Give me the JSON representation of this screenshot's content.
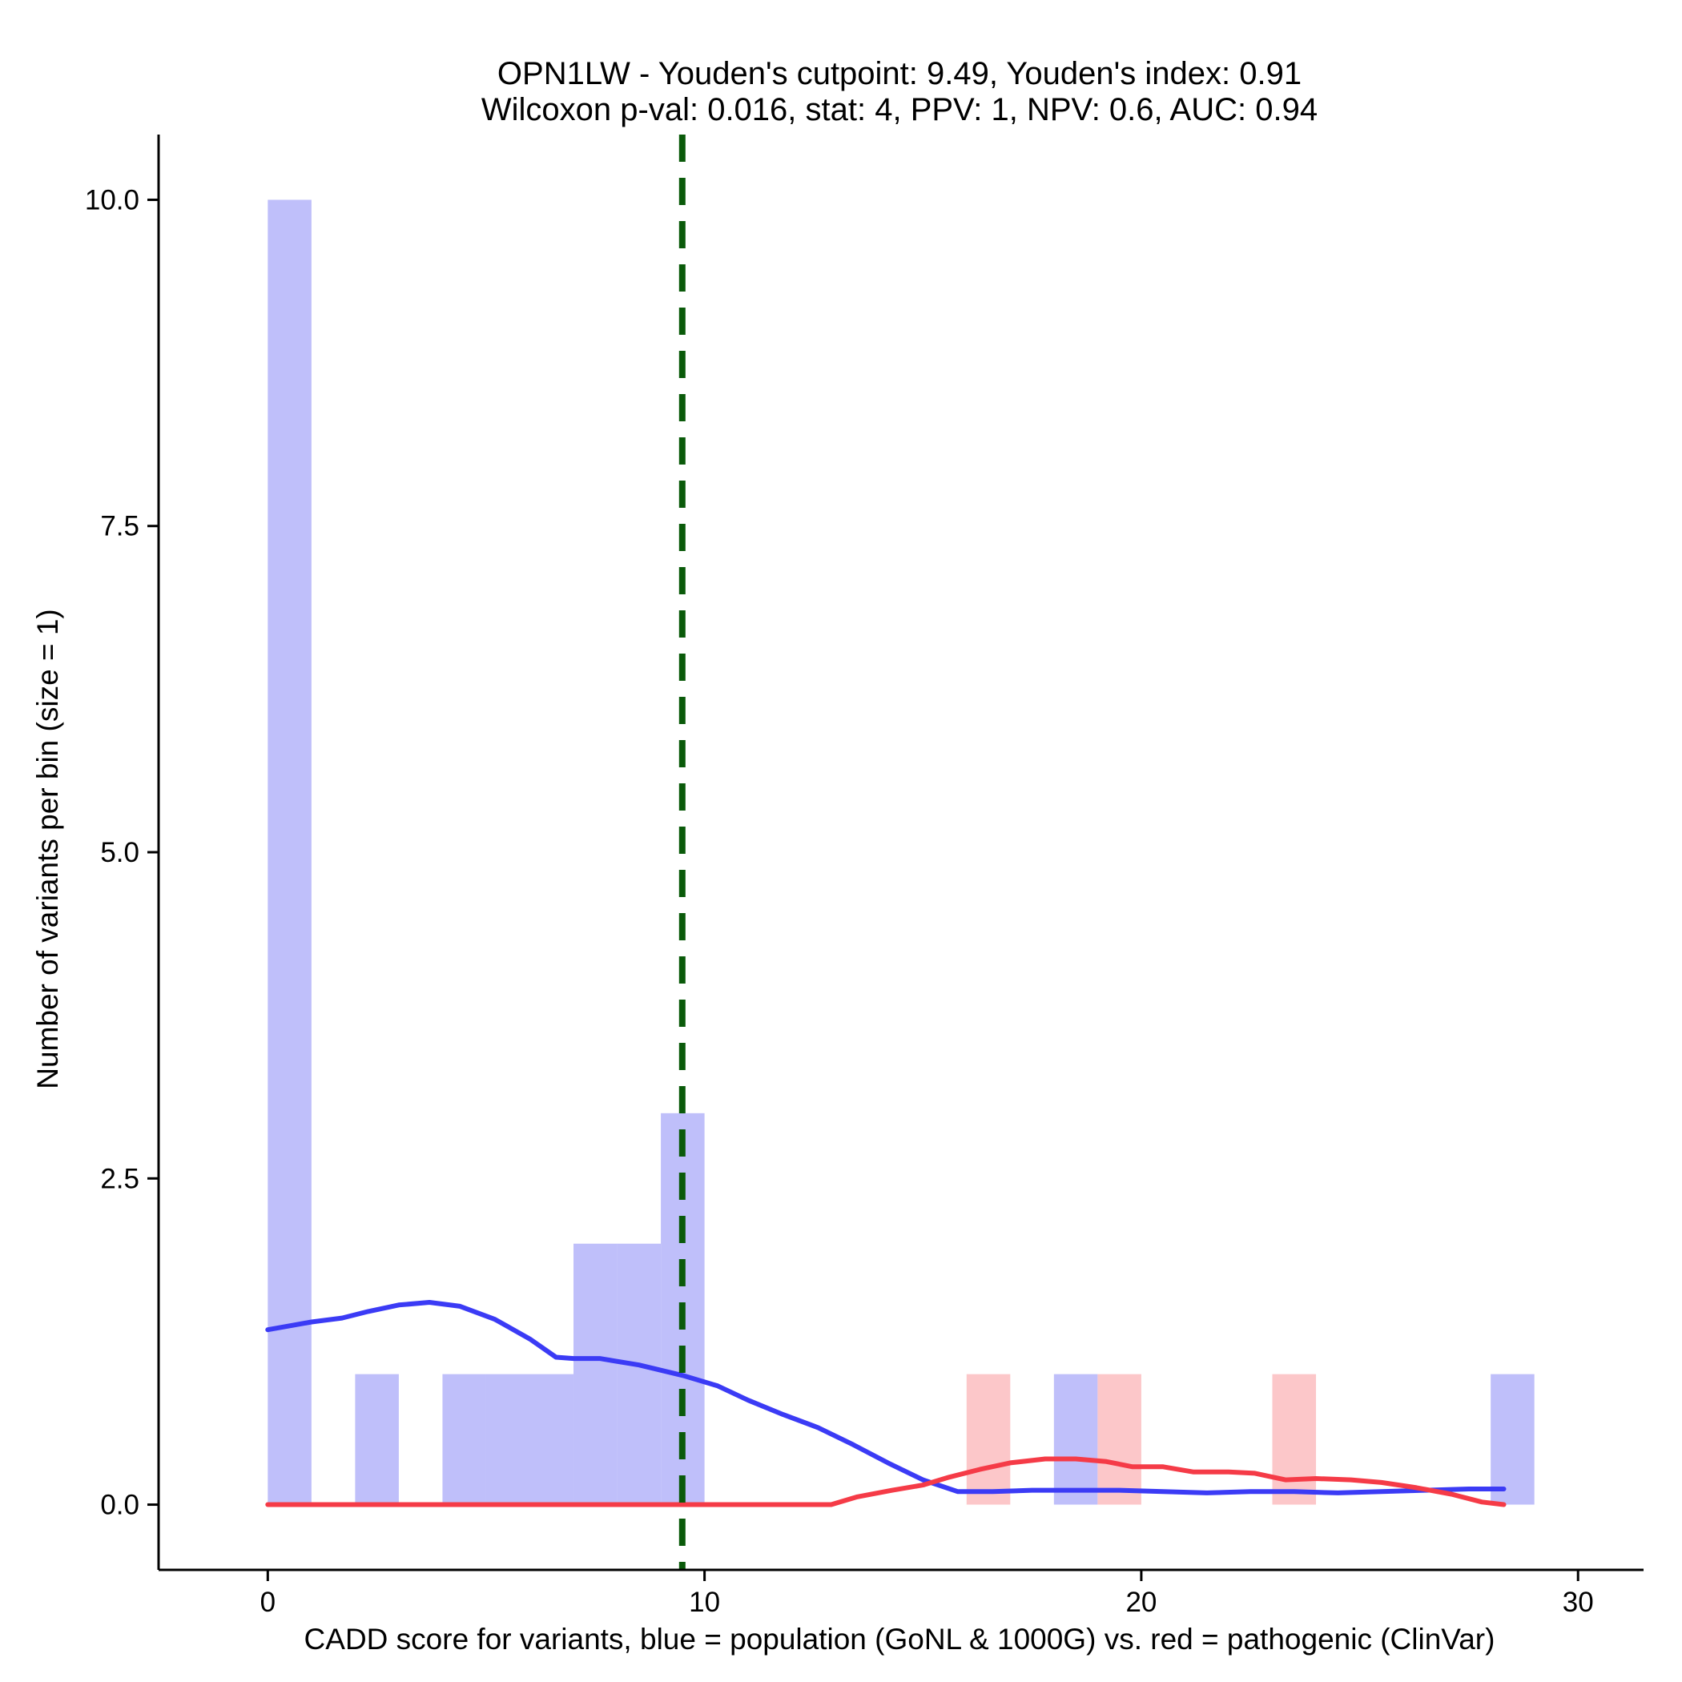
{
  "chart_data": {
    "type": "histogram",
    "title_line1": "OPN1LW - Youden's cutpoint: 9.49, Youden's index: 0.91",
    "title_line2": "Wilcoxon p-val: 0.016, stat: 4, PPV: 1, NPV: 0.6, AUC: 0.94",
    "xlabel": "CADD score for variants, blue = population (GoNL & 1000G) vs. red = pathogenic (ClinVar)",
    "ylabel": "Number of variants per bin (size = 1)",
    "xlim": [
      -2.5,
      31.5
    ],
    "ylim": [
      -0.5,
      10.5
    ],
    "x_ticks": [
      0,
      10,
      20,
      30
    ],
    "x_tick_labels": [
      "0",
      "10",
      "20",
      "30"
    ],
    "y_ticks": [
      0,
      2.5,
      5,
      7.5,
      10
    ],
    "y_tick_labels": [
      "0.0",
      "2.5",
      "5.0",
      "7.5",
      "10.0"
    ],
    "bin_width": 1,
    "cutpoint": 9.49,
    "colors": {
      "population_bars": "#bfbffa",
      "pathogenic_bars": "#fcc4c6",
      "population_density": "#3b3bf5",
      "pathogenic_density": "#f53b47",
      "cutpoint_line": "#0a5a0a",
      "axis": "#000000"
    },
    "series": [
      {
        "name": "population (GoNL & 1000G)",
        "bins": [
          {
            "x0": 0,
            "x1": 1,
            "count": 10
          },
          {
            "x0": 2,
            "x1": 3,
            "count": 1
          },
          {
            "x0": 4,
            "x1": 5,
            "count": 1
          },
          {
            "x0": 5,
            "x1": 6,
            "count": 1
          },
          {
            "x0": 6,
            "x1": 7,
            "count": 1
          },
          {
            "x0": 7,
            "x1": 8,
            "count": 2
          },
          {
            "x0": 8,
            "x1": 9,
            "count": 2
          },
          {
            "x0": 9,
            "x1": 10,
            "count": 3
          },
          {
            "x0": 18,
            "x1": 19,
            "count": 1
          },
          {
            "x0": 28,
            "x1": 29,
            "count": 1
          }
        ],
        "density_curve": [
          [
            0,
            1.34
          ],
          [
            1,
            1.4
          ],
          [
            1.7,
            1.43
          ],
          [
            2.3,
            1.48
          ],
          [
            3,
            1.53
          ],
          [
            3.7,
            1.55
          ],
          [
            4.4,
            1.52
          ],
          [
            5.2,
            1.42
          ],
          [
            6,
            1.27
          ],
          [
            6.6,
            1.13
          ],
          [
            7,
            1.12
          ],
          [
            7.6,
            1.12
          ],
          [
            8.5,
            1.07
          ],
          [
            9.5,
            0.99
          ],
          [
            10.3,
            0.91
          ],
          [
            11,
            0.8
          ],
          [
            11.8,
            0.69
          ],
          [
            12.6,
            0.59
          ],
          [
            13.4,
            0.46
          ],
          [
            14.2,
            0.32
          ],
          [
            15,
            0.19
          ],
          [
            15.8,
            0.1
          ],
          [
            16.6,
            0.1
          ],
          [
            17.5,
            0.11
          ],
          [
            18.5,
            0.11
          ],
          [
            19.5,
            0.11
          ],
          [
            20.5,
            0.1
          ],
          [
            21.5,
            0.09
          ],
          [
            22.5,
            0.1
          ],
          [
            23.5,
            0.1
          ],
          [
            24.5,
            0.09
          ],
          [
            25.5,
            0.1
          ],
          [
            26.5,
            0.11
          ],
          [
            27.5,
            0.12
          ],
          [
            28.3,
            0.12
          ]
        ]
      },
      {
        "name": "pathogenic (ClinVar)",
        "bins": [
          {
            "x0": 16,
            "x1": 17,
            "count": 1
          },
          {
            "x0": 19,
            "x1": 20,
            "count": 1
          },
          {
            "x0": 23,
            "x1": 24,
            "count": 1
          }
        ],
        "density_curve": [
          [
            0,
            0
          ],
          [
            3,
            0
          ],
          [
            6,
            0
          ],
          [
            9,
            0
          ],
          [
            12.9,
            0
          ],
          [
            13.5,
            0.06
          ],
          [
            14.3,
            0.11
          ],
          [
            15,
            0.15
          ],
          [
            15.6,
            0.21
          ],
          [
            16.3,
            0.27
          ],
          [
            17,
            0.32
          ],
          [
            17.8,
            0.35
          ],
          [
            18.5,
            0.35
          ],
          [
            19.2,
            0.33
          ],
          [
            19.8,
            0.29
          ],
          [
            20.5,
            0.29
          ],
          [
            21.2,
            0.25
          ],
          [
            22,
            0.25
          ],
          [
            22.6,
            0.24
          ],
          [
            23.3,
            0.19
          ],
          [
            24,
            0.2
          ],
          [
            24.8,
            0.19
          ],
          [
            25.5,
            0.17
          ],
          [
            26.3,
            0.13
          ],
          [
            27.1,
            0.08
          ],
          [
            27.8,
            0.02
          ],
          [
            28.3,
            0
          ]
        ]
      }
    ]
  }
}
